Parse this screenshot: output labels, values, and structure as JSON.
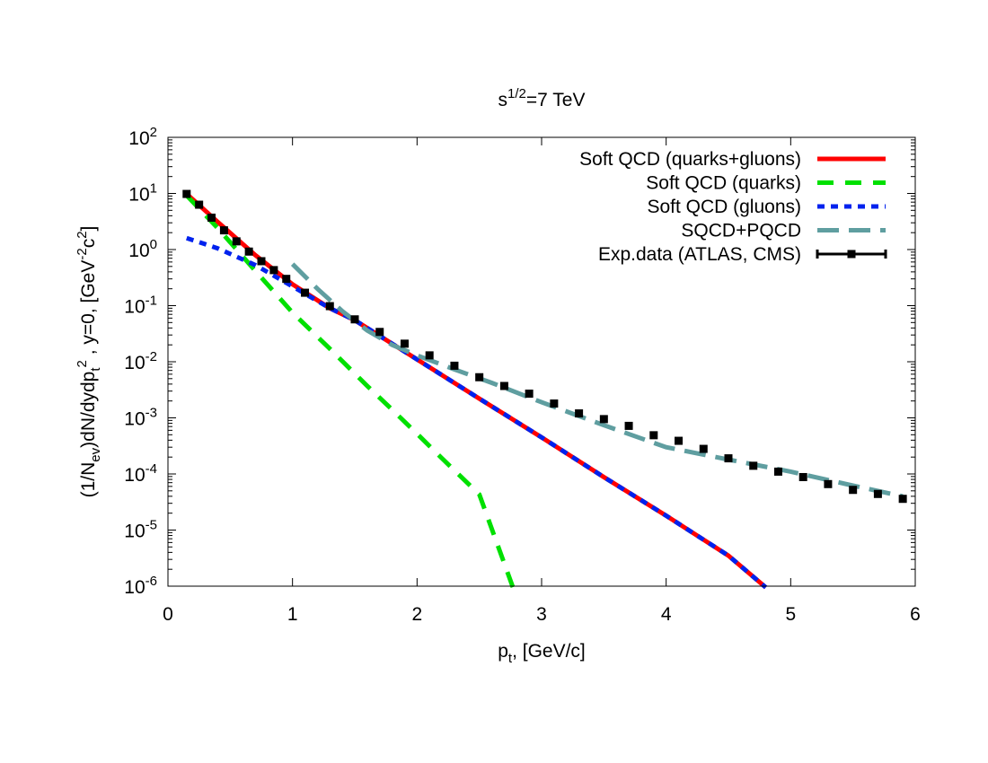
{
  "chart_data": {
    "type": "line",
    "title": "s^{1/2}=7 TeV",
    "xlabel": "p_t, [GeV/c]",
    "ylabel": "(1/N_ev)dN/dydp_t^2 , y=0, [GeV^-2 c^2]",
    "xlim": [
      0,
      6
    ],
    "ylim": [
      1e-06,
      100
    ],
    "yscale": "log",
    "grid": false,
    "legend_position": "top-right",
    "x_ticks": [
      0,
      1,
      2,
      3,
      4,
      5,
      6
    ],
    "y_ticks": [
      {
        "mant": "10",
        "exp": "-6",
        "value": 1e-06
      },
      {
        "mant": "10",
        "exp": "-5",
        "value": 1e-05
      },
      {
        "mant": "10",
        "exp": "-4",
        "value": 0.0001
      },
      {
        "mant": "10",
        "exp": "-3",
        "value": 0.001
      },
      {
        "mant": "10",
        "exp": "-2",
        "value": 0.01
      },
      {
        "mant": "10",
        "exp": "-1",
        "value": 0.1
      },
      {
        "mant": "10",
        "exp": "0",
        "value": 1
      },
      {
        "mant": "10",
        "exp": "1",
        "value": 10
      },
      {
        "mant": "10",
        "exp": "2",
        "value": 100
      }
    ],
    "series": [
      {
        "name": "Soft QCD (quarks+gluons)",
        "color": "#ff0000",
        "style": "solid",
        "x": [
          0.15,
          0.4,
          0.7,
          1.0,
          1.3,
          1.5,
          2.0,
          2.5,
          3.0,
          3.5,
          4.0,
          4.5,
          4.8
        ],
        "y": [
          9.8,
          3.1,
          0.8,
          0.24,
          0.09,
          0.055,
          0.011,
          0.0022,
          0.00045,
          8.8e-05,
          1.8e-05,
          3.5e-06,
          9.5e-07
        ]
      },
      {
        "name": "Soft QCD (quarks)",
        "color": "#00e000",
        "style": "dashed",
        "x": [
          0.15,
          0.4,
          0.7,
          1.0,
          1.3,
          1.6,
          1.8,
          2.0,
          2.2,
          2.5,
          2.77
        ],
        "y": [
          9.2,
          2.4,
          0.42,
          0.075,
          0.017,
          0.0037,
          0.0014,
          0.00052,
          0.00019,
          4.3e-05,
          9.5e-07
        ]
      },
      {
        "name": "Soft QCD (gluons)",
        "color": "#0022ee",
        "style": "dotted",
        "x": [
          0.15,
          0.4,
          0.7,
          1.0,
          1.3,
          1.5,
          2.0,
          2.5,
          3.0,
          3.5,
          4.0,
          4.5,
          4.8
        ],
        "y": [
          1.6,
          1.05,
          0.53,
          0.22,
          0.09,
          0.055,
          0.011,
          0.0022,
          0.00045,
          8.8e-05,
          1.8e-05,
          3.5e-06,
          9.5e-07
        ]
      },
      {
        "name": "SQCD+PQCD",
        "color": "#5f9ea0",
        "style": "longdash",
        "x": [
          1.0,
          1.2,
          1.4,
          1.6,
          1.8,
          2.0,
          2.3,
          2.6,
          3.0,
          3.5,
          4.0,
          4.5,
          5.0,
          5.5,
          5.9
        ],
        "y": [
          0.55,
          0.2,
          0.08,
          0.036,
          0.02,
          0.013,
          0.0073,
          0.0042,
          0.0019,
          0.00074,
          0.0003,
          0.00018,
          0.00011,
          6.2e-05,
          4e-05
        ]
      },
      {
        "name": "Exp.data (ATLAS, CMS)",
        "color": "#000000",
        "style": "points",
        "x": [
          0.15,
          0.25,
          0.35,
          0.45,
          0.55,
          0.65,
          0.75,
          0.85,
          0.95,
          1.1,
          1.3,
          1.5,
          1.7,
          1.9,
          2.1,
          2.3,
          2.5,
          2.7,
          2.9,
          3.1,
          3.3,
          3.5,
          3.7,
          3.9,
          4.1,
          4.3,
          4.5,
          4.7,
          4.9,
          5.1,
          5.3,
          5.5,
          5.7,
          5.9
        ],
        "y": [
          9.8,
          6.3,
          3.7,
          2.2,
          1.4,
          0.92,
          0.62,
          0.43,
          0.3,
          0.17,
          0.098,
          0.057,
          0.034,
          0.021,
          0.013,
          0.0085,
          0.0053,
          0.0037,
          0.0027,
          0.0018,
          0.0012,
          0.00095,
          0.00072,
          0.00049,
          0.00039,
          0.00028,
          0.00019,
          0.00014,
          0.00011,
          8.8e-05,
          6.6e-05,
          5.2e-05,
          4.4e-05,
          3.6e-05
        ]
      }
    ]
  }
}
